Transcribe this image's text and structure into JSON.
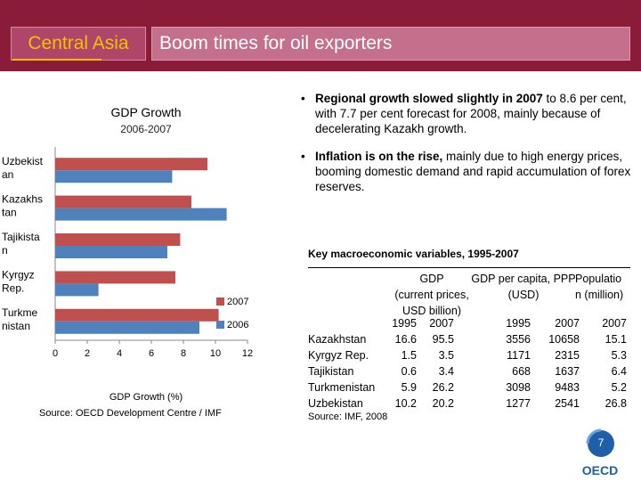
{
  "header": {
    "tag": "Central Asia",
    "title": "Boom times for oil exporters"
  },
  "bullets": [
    {
      "bold": "Regional growth slowed slightly in 2007",
      "rest": " to 8.6 per cent, with 7.7 per cent forecast for 2008, mainly because of decelerating Kazakh growth."
    },
    {
      "bold": "Inflation is on the rise,",
      "rest": " mainly due to high energy prices, booming domestic demand and rapid accumulation of forex reserves."
    }
  ],
  "chart_data": {
    "type": "bar",
    "orientation": "horizontal",
    "title": "GDP Growth",
    "subtitle": "2006-2007",
    "xlabel": "GDP Growth (%)",
    "ylabel": "",
    "xlim": [
      0,
      12
    ],
    "xticks": [
      "0",
      "2",
      "4",
      "6",
      "8",
      "10",
      "12"
    ],
    "categories": [
      "Uzbekistan",
      "Kazakhstan",
      "Tajikistan",
      "Kyrgyz Rep.",
      "Turkmenistan"
    ],
    "category_labels": [
      [
        "Uzbekist",
        "an"
      ],
      [
        "Kazakhs",
        "tan"
      ],
      [
        "Tajikista",
        "n"
      ],
      [
        "Kyrgyz",
        "Rep."
      ],
      [
        "Turkme",
        "nistan"
      ]
    ],
    "series": [
      {
        "name": "2007",
        "color": "#c0504d",
        "values": [
          9.5,
          8.5,
          7.8,
          7.5,
          10.2
        ]
      },
      {
        "name": "2006",
        "color": "#4f81bd",
        "values": [
          7.3,
          10.7,
          7.0,
          2.7,
          9.0
        ]
      }
    ],
    "legend": "inside-right",
    "source": "Source: OECD Development Centre / IMF"
  },
  "table": {
    "title": "Key macroeconomic variables, 1995-2007",
    "headers": [
      {
        "lines": [
          "GDP",
          "(current prices,",
          "USD billion)"
        ]
      },
      {
        "lines": [
          "GDP per capita, PPP",
          "(USD)"
        ]
      },
      {
        "lines": [
          "Populatio",
          "n (million)"
        ]
      }
    ],
    "years": [
      "1995",
      "2007",
      "1995",
      "2007",
      "2007"
    ],
    "rows": [
      {
        "country": "Kazakhstan",
        "values": [
          "16.6",
          "95.5",
          "3556",
          "10658",
          "15.1"
        ]
      },
      {
        "country": "Kyrgyz Rep.",
        "values": [
          "1.5",
          "3.5",
          "1171",
          "2315",
          "5.3"
        ]
      },
      {
        "country": "Tajikistan",
        "values": [
          "0.6",
          "3.4",
          "668",
          "1637",
          "6.4"
        ]
      },
      {
        "country": "Turkmenistan",
        "values": [
          "5.9",
          "26.2",
          "3098",
          "9483",
          "5.2"
        ]
      },
      {
        "country": "Uzbekistan",
        "values": [
          "10.2",
          "20.2",
          "1277",
          "2541",
          "26.8"
        ]
      }
    ],
    "source": "Source: IMF, 2008"
  },
  "footer": {
    "page_number": "7",
    "logo_text": "OECD"
  }
}
